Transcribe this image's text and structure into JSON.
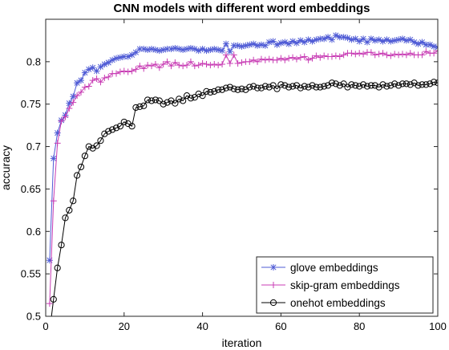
{
  "chart_data": {
    "type": "line",
    "title": "CNN models with different word embeddings",
    "xlabel": "iteration",
    "ylabel": "accuracy",
    "xlim": [
      0,
      100
    ],
    "ylim": [
      0.5,
      0.85
    ],
    "xticks": [
      "0",
      "20",
      "40",
      "60",
      "80",
      "100"
    ],
    "yticks": [
      "0.5",
      "0.55",
      "0.6",
      "0.65",
      "0.7",
      "0.75",
      "0.8"
    ],
    "grid": false,
    "legend_position": "bottom-right",
    "x": [
      1,
      2,
      3,
      4,
      5,
      6,
      7,
      8,
      9,
      10,
      11,
      12,
      13,
      14,
      15,
      16,
      17,
      18,
      19,
      20,
      21,
      22,
      23,
      24,
      25,
      26,
      27,
      28,
      29,
      30,
      31,
      32,
      33,
      34,
      35,
      36,
      37,
      38,
      39,
      40,
      41,
      42,
      43,
      44,
      45,
      46,
      47,
      48,
      49,
      50,
      51,
      52,
      53,
      54,
      55,
      56,
      57,
      58,
      59,
      60,
      61,
      62,
      63,
      64,
      65,
      66,
      67,
      68,
      69,
      70,
      71,
      72,
      73,
      74,
      75,
      76,
      77,
      78,
      79,
      80,
      81,
      82,
      83,
      84,
      85,
      86,
      87,
      88,
      89,
      90,
      91,
      92,
      93,
      94,
      95,
      96,
      97,
      98,
      99,
      100
    ],
    "series": [
      {
        "name": "glove embeddings",
        "color": "#4f5bd5",
        "marker": "asterisk",
        "values": [
          0.566,
          0.686,
          0.716,
          0.731,
          0.737,
          0.751,
          0.759,
          0.775,
          0.778,
          0.787,
          0.791,
          0.793,
          0.789,
          0.794,
          0.797,
          0.799,
          0.802,
          0.804,
          0.805,
          0.806,
          0.806,
          0.808,
          0.811,
          0.815,
          0.815,
          0.814,
          0.815,
          0.814,
          0.813,
          0.814,
          0.815,
          0.815,
          0.816,
          0.815,
          0.814,
          0.815,
          0.816,
          0.815,
          0.813,
          0.815,
          0.813,
          0.814,
          0.815,
          0.814,
          0.813,
          0.821,
          0.812,
          0.819,
          0.819,
          0.818,
          0.819,
          0.82,
          0.821,
          0.819,
          0.82,
          0.819,
          0.823,
          0.824,
          0.82,
          0.822,
          0.823,
          0.821,
          0.824,
          0.822,
          0.825,
          0.823,
          0.826,
          0.824,
          0.826,
          0.827,
          0.827,
          0.829,
          0.826,
          0.831,
          0.829,
          0.829,
          0.828,
          0.826,
          0.827,
          0.824,
          0.827,
          0.823,
          0.827,
          0.825,
          0.826,
          0.824,
          0.826,
          0.824,
          0.825,
          0.826,
          0.827,
          0.825,
          0.826,
          0.823,
          0.821,
          0.823,
          0.82,
          0.82,
          0.818,
          0.817
        ]
      },
      {
        "name": "skip-gram embeddings",
        "color": "#c83cb4",
        "marker": "plus",
        "values": [
          0.515,
          0.636,
          0.704,
          0.73,
          0.735,
          0.745,
          0.752,
          0.76,
          0.764,
          0.77,
          0.771,
          0.778,
          0.78,
          0.776,
          0.781,
          0.782,
          0.786,
          0.786,
          0.788,
          0.789,
          0.788,
          0.789,
          0.791,
          0.795,
          0.792,
          0.796,
          0.795,
          0.797,
          0.793,
          0.797,
          0.8,
          0.795,
          0.799,
          0.796,
          0.795,
          0.796,
          0.8,
          0.795,
          0.796,
          0.798,
          0.797,
          0.796,
          0.797,
          0.796,
          0.797,
          0.808,
          0.798,
          0.808,
          0.798,
          0.799,
          0.8,
          0.8,
          0.802,
          0.8,
          0.803,
          0.802,
          0.803,
          0.802,
          0.802,
          0.804,
          0.802,
          0.804,
          0.805,
          0.803,
          0.805,
          0.806,
          0.802,
          0.804,
          0.807,
          0.805,
          0.807,
          0.806,
          0.806,
          0.807,
          0.806,
          0.808,
          0.81,
          0.81,
          0.809,
          0.81,
          0.809,
          0.811,
          0.811,
          0.808,
          0.809,
          0.81,
          0.808,
          0.807,
          0.809,
          0.808,
          0.809,
          0.808,
          0.81,
          0.808,
          0.808,
          0.808,
          0.812,
          0.81,
          0.81,
          0.813
        ]
      },
      {
        "name": "onehot embeddings",
        "color": "#000000",
        "marker": "circle",
        "values": [
          0.482,
          0.52,
          0.557,
          0.584,
          0.616,
          0.625,
          0.636,
          0.666,
          0.676,
          0.689,
          0.7,
          0.698,
          0.701,
          0.707,
          0.715,
          0.718,
          0.72,
          0.722,
          0.724,
          0.729,
          0.727,
          0.724,
          0.746,
          0.747,
          0.748,
          0.755,
          0.754,
          0.755,
          0.754,
          0.75,
          0.752,
          0.754,
          0.751,
          0.756,
          0.754,
          0.76,
          0.757,
          0.758,
          0.762,
          0.76,
          0.765,
          0.764,
          0.765,
          0.767,
          0.767,
          0.769,
          0.77,
          0.768,
          0.767,
          0.768,
          0.767,
          0.77,
          0.771,
          0.769,
          0.769,
          0.771,
          0.77,
          0.772,
          0.768,
          0.773,
          0.772,
          0.77,
          0.771,
          0.772,
          0.769,
          0.771,
          0.77,
          0.772,
          0.77,
          0.77,
          0.771,
          0.772,
          0.775,
          0.774,
          0.772,
          0.774,
          0.77,
          0.773,
          0.772,
          0.771,
          0.773,
          0.771,
          0.772,
          0.772,
          0.77,
          0.773,
          0.771,
          0.772,
          0.774,
          0.772,
          0.774,
          0.774,
          0.773,
          0.775,
          0.772,
          0.773,
          0.773,
          0.774,
          0.776,
          0.775
        ]
      }
    ]
  }
}
